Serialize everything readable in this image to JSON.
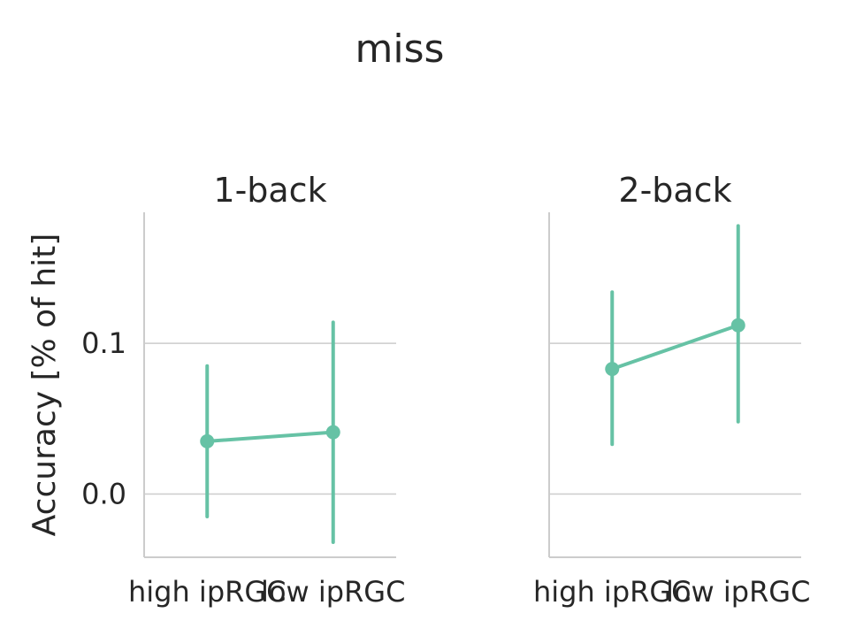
{
  "chart_data": {
    "type": "line",
    "title": "miss",
    "ylabel": "Accuracy [% of hit]",
    "ylim": [
      -0.042,
      0.187
    ],
    "yticks": [
      0.0,
      0.1
    ],
    "ytick_labels": [
      "0.0",
      "0.1"
    ],
    "grid": true,
    "color": "#66c2a5",
    "panels": [
      {
        "title": "1-back",
        "categories": [
          "high ipRGC",
          "low ipRGC"
        ],
        "values": [
          0.035,
          0.041
        ],
        "ci_low": [
          -0.015,
          -0.032
        ],
        "ci_high": [
          0.085,
          0.114
        ]
      },
      {
        "title": "2-back",
        "categories": [
          "high ipRGC",
          "low ipRGC"
        ],
        "values": [
          0.083,
          0.112
        ],
        "ci_low": [
          0.033,
          0.048
        ],
        "ci_high": [
          0.134,
          0.178
        ]
      }
    ]
  }
}
